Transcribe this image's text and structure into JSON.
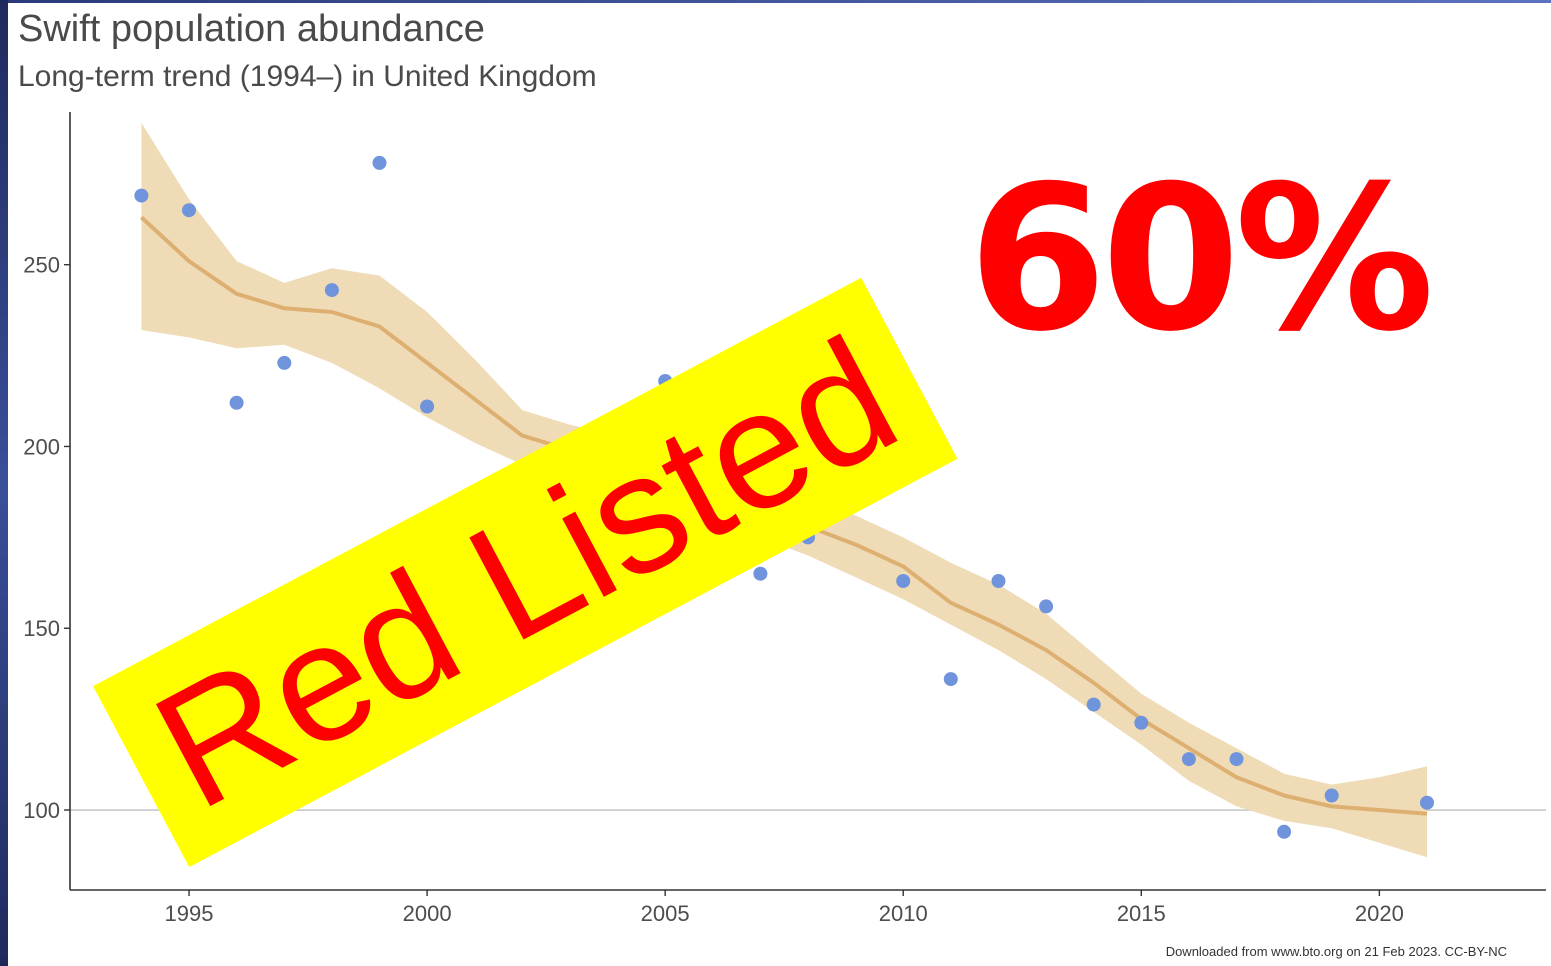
{
  "header": {
    "title": "Swift population abundance",
    "subtitle": "Long-term trend (1994–) in United Kingdom"
  },
  "overlays": {
    "stamp_text": "Red Listed",
    "stamp_bg_color": "#ffff00",
    "stamp_text_color": "#ff0000",
    "headline_figure": "60%",
    "headline_color": "#ff0000"
  },
  "footer": {
    "credit": "Downloaded from www.bto.org on 21 Feb 2023. CC-BY-NC"
  },
  "chart_data": {
    "type": "scatter",
    "title": "Swift population abundance",
    "subtitle": "Long-term trend (1994–) in United Kingdom",
    "xlabel": "",
    "ylabel": "",
    "xlim": [
      1992.5,
      2023.5
    ],
    "ylim": [
      78,
      292
    ],
    "x_ticks": [
      1995,
      2000,
      2005,
      2010,
      2015,
      2020
    ],
    "y_ticks": [
      100,
      150,
      200,
      250
    ],
    "reference_line_y": 100,
    "grid": false,
    "colors": {
      "points": "#6f94dc",
      "trend": "#ddb072",
      "band": "#efdbb6"
    },
    "series": [
      {
        "type": "points",
        "x": [
          1994,
          1995,
          1996,
          1997,
          1998,
          1999,
          2000,
          2005,
          2007,
          2008,
          2010,
          2011,
          2012,
          2013,
          2014,
          2015,
          2016,
          2017,
          2018,
          2019,
          2021
        ],
        "y": [
          269,
          265,
          212,
          223,
          243,
          278,
          211,
          218,
          165,
          175,
          163,
          136,
          163,
          156,
          129,
          124,
          114,
          114,
          94,
          104,
          102
        ]
      },
      {
        "type": "trend",
        "x": [
          1994,
          1995,
          1996,
          1997,
          1998,
          1999,
          2000,
          2001,
          2002,
          2003,
          2004,
          2005,
          2006,
          2007,
          2008,
          2009,
          2010,
          2011,
          2012,
          2013,
          2014,
          2015,
          2016,
          2017,
          2018,
          2019,
          2020,
          2021
        ],
        "y": [
          263,
          251,
          242,
          238,
          237,
          233,
          223,
          213,
          203,
          199,
          196,
          192,
          188,
          183,
          178,
          173,
          167,
          157,
          151,
          144,
          135,
          125,
          117,
          109,
          104,
          101,
          100,
          99
        ],
        "lower": [
          232,
          230,
          227,
          228,
          223,
          216,
          208,
          201,
          195,
          191,
          187,
          183,
          179,
          175,
          170,
          164,
          158,
          151,
          144,
          136,
          127,
          118,
          108,
          101,
          97,
          95,
          91,
          87
        ],
        "upper": [
          289,
          268,
          251,
          245,
          249,
          247,
          237,
          224,
          210,
          206,
          203,
          200,
          196,
          192,
          186,
          181,
          175,
          168,
          162,
          154,
          143,
          132,
          124,
          117,
          110,
          107,
          109,
          112
        ]
      }
    ]
  }
}
